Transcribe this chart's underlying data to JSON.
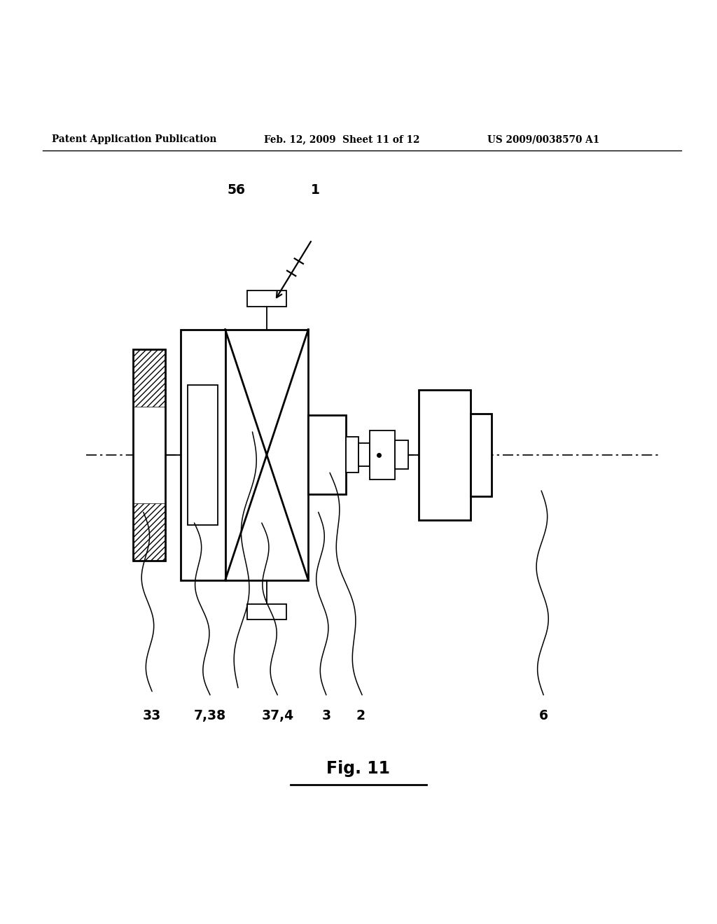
{
  "header_left": "Patent Application Publication",
  "header_mid": "Feb. 12, 2009  Sheet 11 of 12",
  "header_right": "US 2009/0038570 A1",
  "figure_label": "Fig. 11",
  "bg_color": "#ffffff",
  "line_color": "#000000"
}
